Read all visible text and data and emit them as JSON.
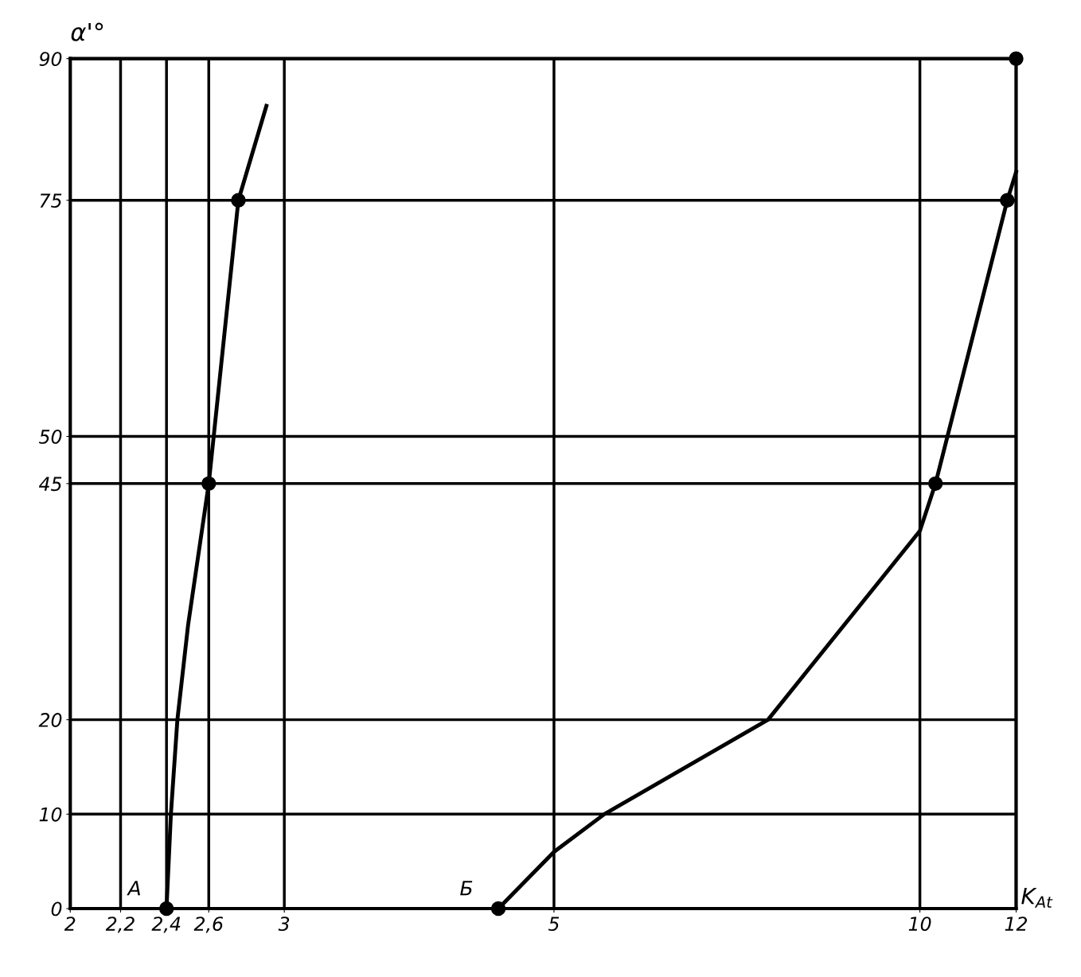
{
  "chart_data": {
    "type": "line",
    "xlabel": "K$_{At}$",
    "ylabel": "α'°",
    "log": "x",
    "grid": true,
    "line_style": "solid",
    "xlim": [
      2,
      12
    ],
    "xticks": [
      2,
      {
        "value": 2.2,
        "label": "2,2"
      },
      {
        "value": 2.4,
        "label": "2,4"
      },
      {
        "value": 2.6,
        "label": "2,6"
      },
      3,
      5,
      10,
      12
    ],
    "ylim": [
      0,
      90
    ],
    "yticks": [
      0,
      10,
      20,
      45,
      50,
      75,
      90
    ],
    "series": [
      {
        "color": "#000000",
        "x": [
          2.4,
          2.42,
          2.45,
          2.5,
          2.6,
          2.75,
          2.9
        ],
        "values": [
          0,
          10,
          20,
          30,
          45,
          75,
          85
        ]
      },
      {
        "color": "#000000",
        "x": [
          4.5,
          5,
          5.5,
          7.5,
          10,
          10.3,
          11.8,
          12
        ],
        "values": [
          0,
          6,
          10,
          20,
          40,
          45,
          75,
          78
        ]
      },
      {
        "type": "scatter",
        "color": "#000000",
        "marker": "circle",
        "x": [
          2.4,
          2.6,
          2.75,
          4.5,
          10.3,
          11.8,
          12
        ],
        "values": [
          0,
          45,
          75,
          0,
          45,
          75,
          90
        ]
      }
    ],
    "annotations": [
      {
        "text": "А",
        "x": 2.4,
        "y": 0
      },
      {
        "text": "Б",
        "x": 4.5,
        "y": 0
      }
    ]
  }
}
